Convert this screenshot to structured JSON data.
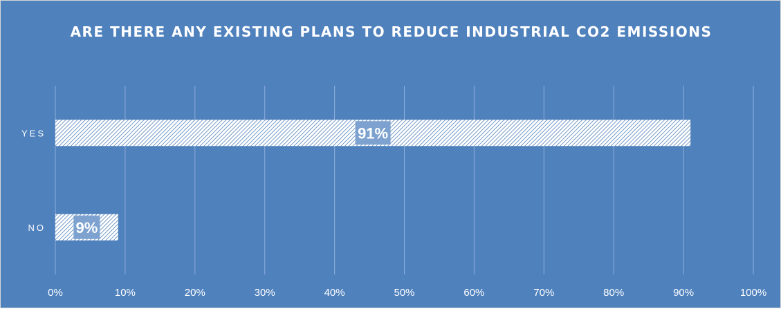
{
  "chart_data": {
    "type": "bar",
    "orientation": "horizontal",
    "title": "ARE THERE ANY EXISTING PLANS TO REDUCE INDUSTRIAL CO2 EMISSIONS",
    "categories": [
      "YES",
      "NO"
    ],
    "values": [
      91,
      9
    ],
    "data_labels": [
      "91%",
      "9%"
    ],
    "xlabel": "",
    "ylabel": "",
    "xlim": [
      0,
      100
    ],
    "x_ticks": [
      "0%",
      "10%",
      "20%",
      "30%",
      "40%",
      "50%",
      "60%",
      "70%",
      "80%",
      "90%",
      "100%"
    ],
    "grid": true,
    "legend": "none",
    "colors": {
      "background": "#4f81bd",
      "bar_pattern": "hatched white",
      "text": "#ffffff"
    }
  }
}
